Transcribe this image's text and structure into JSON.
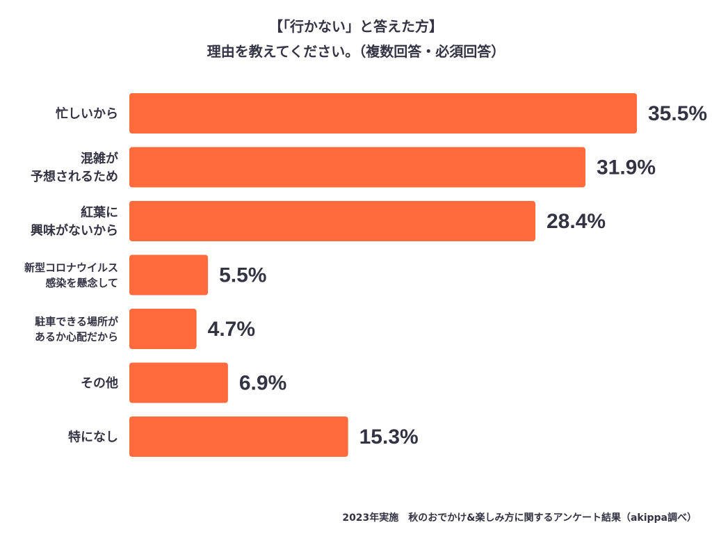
{
  "title_line1": "【「行かない」と答えた方】",
  "title_line2": "理由を教えてください。（複数回答・必須回答）",
  "footer": "2023年実施　秋のおでかけ&楽しみ方に関するアンケート結果（akippa調べ）",
  "colors": {
    "bar": "#ff6b3d",
    "text": "#333344"
  },
  "chart_data": {
    "type": "bar",
    "orientation": "horizontal",
    "title": "【「行かない」と答えた方】理由を教えてください。（複数回答・必須回答）",
    "unit": "%",
    "categories": [
      [
        "忙しいから"
      ],
      [
        "混雑が",
        "予想されるため"
      ],
      [
        "紅葉に",
        "興味がないから"
      ],
      [
        "新型コロナウイルス",
        "感染を懸念して"
      ],
      [
        "駐車できる場所が",
        "あるか心配だから"
      ],
      [
        "その他"
      ],
      [
        "特になし"
      ]
    ],
    "values": [
      35.5,
      31.9,
      28.4,
      5.5,
      4.7,
      6.9,
      15.3
    ],
    "value_labels": [
      "35.5%",
      "31.9%",
      "28.4%",
      "5.5%",
      "4.7%",
      "6.9%",
      "15.3%"
    ],
    "xlim": [
      0,
      35.5
    ],
    "grid": false,
    "legend": "none"
  }
}
